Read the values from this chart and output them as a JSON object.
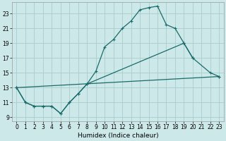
{
  "xlabel": "Humidex (Indice chaleur)",
  "bg_color": "#cde8e8",
  "grid_color": "#aacccc",
  "line_color": "#1a6b6b",
  "xlim": [
    -0.5,
    23.5
  ],
  "ylim": [
    8.5,
    24.5
  ],
  "yticks": [
    9,
    11,
    13,
    15,
    17,
    19,
    21,
    23
  ],
  "xticks": [
    0,
    1,
    2,
    3,
    4,
    5,
    6,
    7,
    8,
    9,
    10,
    11,
    12,
    13,
    14,
    15,
    16,
    17,
    18,
    19,
    20,
    21,
    22,
    23
  ],
  "line1_x": [
    0,
    1,
    2,
    3,
    4,
    5,
    6,
    7,
    8,
    9,
    10,
    11,
    12,
    13,
    14,
    15,
    16,
    17,
    18,
    19,
    20
  ],
  "line1_y": [
    13,
    11,
    10.5,
    10.5,
    10.5,
    9.5,
    11,
    12.2,
    13.5,
    15.2,
    18.5,
    19.5,
    21.0,
    22.0,
    23.5,
    23.8,
    24.0,
    21.5,
    21.0,
    19.0,
    17.0
  ],
  "line2_x": [
    0,
    23
  ],
  "line2_y": [
    13,
    14.5
  ],
  "line3_x": [
    0,
    1,
    2,
    3,
    4,
    5,
    6,
    7,
    8,
    19,
    20,
    22,
    23
  ],
  "line3_y": [
    13,
    11,
    10.5,
    10.5,
    10.5,
    9.5,
    11.0,
    12.2,
    13.5,
    19.0,
    17.0,
    15.0,
    14.5
  ]
}
